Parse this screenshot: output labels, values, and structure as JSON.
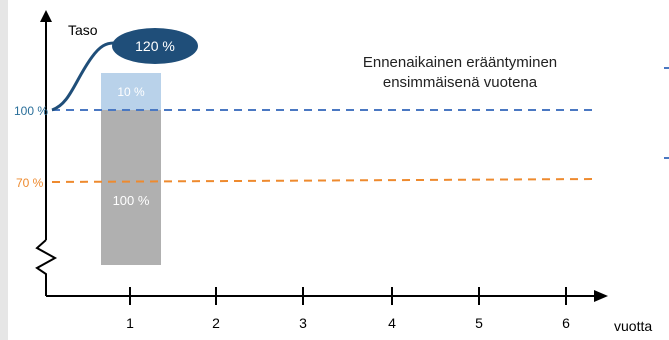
{
  "diagram": {
    "y_axis_label": "Taso",
    "x_axis_label": "vuotta",
    "annotation": {
      "line1": "Ennenaikainen erääntyminen",
      "line2": "ensimmäisenä vuotena"
    },
    "callout": "120 %",
    "levels": {
      "upper": "100 %",
      "lower": "70 %"
    },
    "bar": {
      "top_label": "10 %",
      "bottom_label": "100 %"
    },
    "x_ticks": [
      "1",
      "2",
      "3",
      "4",
      "5",
      "6"
    ]
  },
  "colors": {
    "axis": "#000000",
    "upper_line": "#4a78c2",
    "lower_line": "#ee8a2e",
    "upper_label": "#2a6f9a",
    "lower_label": "#ee8a2e",
    "bar_top": "#b9d2ea",
    "bar_bottom": "#b0b0b0",
    "callout_fill": "#1f4e79",
    "curve": "#1f4e79",
    "side_rule": "#e6e6e6"
  }
}
